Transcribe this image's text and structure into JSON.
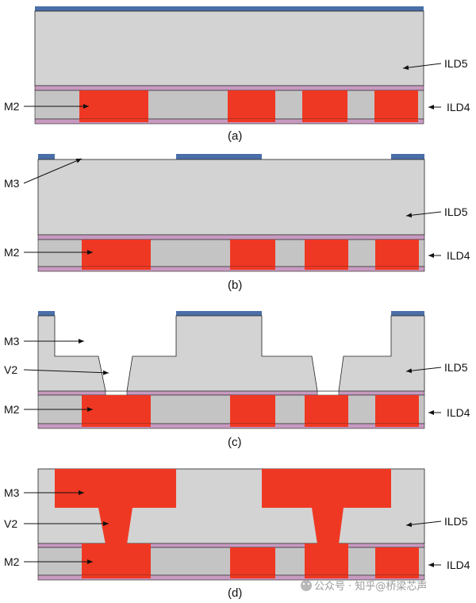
{
  "panels": [
    {
      "caption": "(a)",
      "labels": [
        "M2",
        "ILD5",
        "ILD4"
      ]
    },
    {
      "caption": "(b)",
      "labels": [
        "M3",
        "M2",
        "ILD5",
        "ILD4"
      ]
    },
    {
      "caption": "(c)",
      "labels": [
        "M3",
        "V2",
        "M2",
        "ILD5",
        "ILD4"
      ]
    },
    {
      "caption": "(d)",
      "labels": [
        "M3",
        "V2",
        "M2",
        "ILD5",
        "ILD4"
      ]
    }
  ],
  "watermark": {
    "text": "公众号 · 知乎@桥梁芯声"
  },
  "colors": {
    "dielectric": "#d3d3d3",
    "dielectric_dark": "#c4c4c4",
    "metal": "#ef3823",
    "cap_layer": "#c79ac0",
    "hardmask": "#4a6fa8",
    "outline": "#222222"
  }
}
